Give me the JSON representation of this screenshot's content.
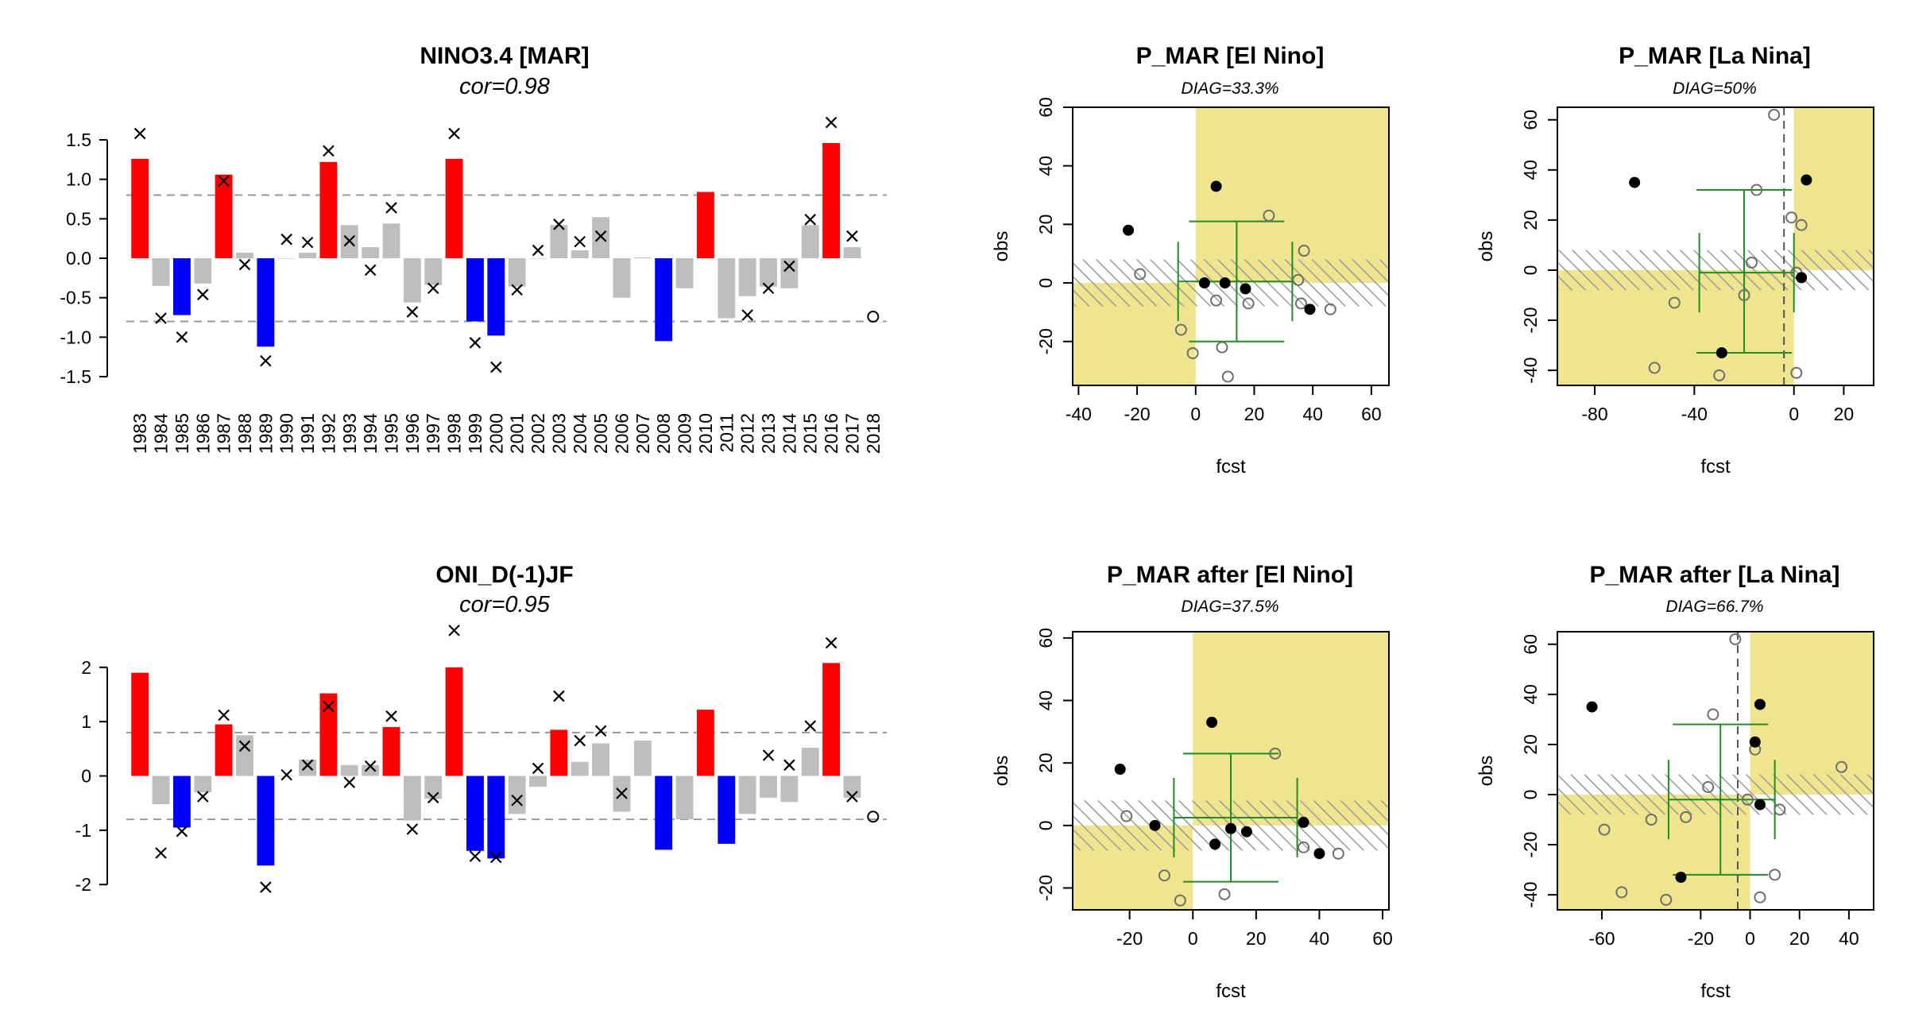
{
  "charts": [
    {
      "type": "bar",
      "title": "NINO3.4 [MAR]",
      "subtitle": "cor=0.98",
      "categories": [
        "1983",
        "1984",
        "1985",
        "1986",
        "1987",
        "1988",
        "1989",
        "1990",
        "1991",
        "1992",
        "1993",
        "1994",
        "1995",
        "1996",
        "1997",
        "1998",
        "1999",
        "2000",
        "2001",
        "2002",
        "2003",
        "2004",
        "2005",
        "2006",
        "2007",
        "2008",
        "2009",
        "2010",
        "2011",
        "2012",
        "2013",
        "2014",
        "2015",
        "2016",
        "2017",
        "2018"
      ],
      "yticks": [
        "-1.5",
        "-1.0",
        "-0.5",
        "0.0",
        "0.5",
        "1.0",
        "1.5"
      ],
      "ylim": [
        -1.5,
        1.5
      ],
      "threshold": 0.8,
      "bar_values": [
        1.26,
        -0.35,
        -0.72,
        -0.32,
        1.06,
        0.07,
        -1.12,
        0,
        0.07,
        1.22,
        0.42,
        0.14,
        0.44,
        -0.56,
        -0.34,
        1.26,
        -0.8,
        -0.98,
        -0.36,
        0,
        0.42,
        0.1,
        0.52,
        -0.5,
        0.01,
        -1.05,
        -0.38,
        0.84,
        -0.76,
        -0.48,
        -0.36,
        -0.38,
        0.42,
        1.46,
        0.14,
        null
      ],
      "obs_values": [
        1.58,
        -0.76,
        -1.0,
        -0.46,
        0.98,
        -0.08,
        -1.3,
        0.24,
        0.2,
        1.36,
        0.22,
        -0.15,
        0.64,
        -0.68,
        -0.38,
        1.58,
        -1.07,
        -1.38,
        -0.4,
        0.1,
        0.43,
        0.21,
        0.28,
        null,
        null,
        null,
        null,
        null,
        null,
        -0.72,
        -0.38,
        -0.1,
        0.49,
        1.72,
        0.28,
        -0.74
      ],
      "bar_colors": [
        "red",
        "gray",
        "blue",
        "gray",
        "red",
        "gray",
        "blue",
        "gray",
        "gray",
        "red",
        "gray",
        "gray",
        "gray",
        "gray",
        "gray",
        "red",
        "blue",
        "blue",
        "gray",
        "gray",
        "gray",
        "gray",
        "gray",
        "gray",
        "gray",
        "blue",
        "gray",
        "red",
        "gray",
        "gray",
        "gray",
        "gray",
        "gray",
        "red",
        "gray",
        "none"
      ],
      "open_circle_index": 35
    },
    {
      "type": "bar",
      "title": "ONI_D(-1)JF",
      "subtitle": "cor=0.95",
      "categories": [
        "1983",
        "1984",
        "1985",
        "1986",
        "1987",
        "1988",
        "1989",
        "1990",
        "1991",
        "1992",
        "1993",
        "1994",
        "1995",
        "1996",
        "1997",
        "1998",
        "1999",
        "2000",
        "2001",
        "2002",
        "2003",
        "2004",
        "2005",
        "2006",
        "2007",
        "2008",
        "2009",
        "2010",
        "2011",
        "2012",
        "2013",
        "2014",
        "2015",
        "2016",
        "2017",
        "2018"
      ],
      "yticks": [
        "-2",
        "-1",
        "0",
        "1",
        "2"
      ],
      "ylim": [
        -2.1,
        2.1
      ],
      "threshold": 0.8,
      "bar_values": [
        1.9,
        -0.52,
        -0.95,
        -0.3,
        0.95,
        0.75,
        -1.65,
        0,
        0.3,
        1.52,
        0.2,
        0.2,
        0.9,
        -0.82,
        -0.42,
        2.0,
        -1.38,
        -1.52,
        -0.7,
        -0.2,
        0.85,
        0.26,
        0.6,
        -0.66,
        0.65,
        -1.36,
        -0.8,
        1.22,
        -1.25,
        -0.7,
        -0.4,
        -0.48,
        0.52,
        2.08,
        -0.4,
        null
      ],
      "obs_values": [
        null,
        -1.42,
        -1.02,
        -0.38,
        1.12,
        0.55,
        -2.05,
        0.02,
        0.2,
        1.28,
        -0.12,
        0.18,
        1.1,
        -0.98,
        -0.4,
        2.68,
        -1.48,
        -1.5,
        -0.45,
        0.14,
        1.47,
        0.65,
        0.83,
        -0.32,
        null,
        null,
        null,
        null,
        null,
        null,
        0.38,
        0.2,
        0.92,
        2.45,
        -0.38,
        -0.75
      ],
      "bar_colors": [
        "red",
        "gray",
        "blue",
        "gray",
        "red",
        "gray",
        "blue",
        "gray",
        "gray",
        "red",
        "gray",
        "gray",
        "red",
        "gray",
        "gray",
        "red",
        "blue",
        "blue",
        "gray",
        "gray",
        "red",
        "gray",
        "gray",
        "gray",
        "gray",
        "blue",
        "gray",
        "red",
        "blue",
        "gray",
        "gray",
        "gray",
        "gray",
        "red",
        "gray",
        "none"
      ],
      "open_circle_index": 35
    },
    {
      "type": "scatter",
      "title": "P_MAR [El Nino]",
      "diag": "DIAG=33.3%",
      "xlabel": "fcst",
      "ylabel": "obs",
      "xlim": [
        -42,
        66
      ],
      "ylim": [
        -35,
        60
      ],
      "xticks": [
        "-40",
        "-20",
        "0",
        "20",
        "40",
        "60"
      ],
      "yticks": [
        "-20",
        "0",
        "20",
        "40",
        "60"
      ],
      "yellow_quadrants": [
        [
          0,
          66,
          0,
          60
        ],
        [
          -42,
          0,
          -35,
          0
        ]
      ],
      "hatch_band": [
        -8,
        8
      ],
      "filled_points": [
        [
          -23,
          18
        ],
        [
          7,
          33
        ],
        [
          3,
          0
        ],
        [
          10,
          0
        ],
        [
          17,
          -2
        ],
        [
          39,
          -9
        ]
      ],
      "open_points": [
        [
          -19,
          3
        ],
        [
          -5,
          -16
        ],
        [
          -1,
          -24
        ],
        [
          7,
          -6
        ],
        [
          9,
          -22
        ],
        [
          11,
          -32
        ],
        [
          18,
          -7
        ],
        [
          25,
          23
        ],
        [
          35,
          1
        ],
        [
          36,
          -7
        ],
        [
          37,
          11
        ],
        [
          46,
          -9
        ]
      ],
      "error_cross": {
        "x": 14,
        "y": 0.5,
        "x_lo": -6,
        "x_hi": 33,
        "y_lo": -20,
        "y_hi": 21
      }
    },
    {
      "type": "scatter",
      "title": "P_MAR [La Nina]",
      "diag": "DIAG=50%",
      "xlabel": "fcst",
      "ylabel": "obs",
      "xlim": [
        -95,
        32
      ],
      "ylim": [
        -46,
        65
      ],
      "xticks": [
        "-80",
        "-40",
        "0",
        "20"
      ],
      "yticks": [
        "-40",
        "-20",
        "0",
        "20",
        "40",
        "60"
      ],
      "yellow_quadrants": [
        [
          0,
          32,
          0,
          65
        ],
        [
          -95,
          0,
          -46,
          0
        ]
      ],
      "hatch_band": [
        -8,
        8
      ],
      "filled_points": [
        [
          -64,
          35
        ],
        [
          -29,
          -33
        ],
        [
          5,
          36
        ],
        [
          3,
          -3
        ]
      ],
      "open_points": [
        [
          -56,
          -39
        ],
        [
          -48,
          -13
        ],
        [
          -30,
          -42
        ],
        [
          -20,
          -10
        ],
        [
          -17,
          3
        ],
        [
          -15,
          32
        ],
        [
          -8,
          62
        ],
        [
          -1,
          21
        ],
        [
          1,
          -1
        ],
        [
          3,
          18
        ],
        [
          1,
          -41
        ]
      ],
      "error_cross": {
        "x": -20,
        "y": -1,
        "x_lo": -38,
        "x_hi": 0,
        "y_lo": -33,
        "y_hi": 32
      },
      "vline": -4
    },
    {
      "type": "scatter",
      "title": "P_MAR after [El Nino]",
      "diag": "DIAG=37.5%",
      "xlabel": "fcst",
      "ylabel": "obs",
      "xlim": [
        -38,
        62
      ],
      "ylim": [
        -27,
        62
      ],
      "xticks": [
        "-20",
        "0",
        "20",
        "40",
        "60"
      ],
      "yticks": [
        "-20",
        "0",
        "20",
        "40",
        "60"
      ],
      "yellow_quadrants": [
        [
          0,
          62,
          0,
          62
        ],
        [
          -38,
          0,
          -27,
          0
        ]
      ],
      "hatch_band": [
        -8,
        8
      ],
      "filled_points": [
        [
          -23,
          18
        ],
        [
          6,
          33
        ],
        [
          -12,
          0
        ],
        [
          7,
          -6
        ],
        [
          12,
          -1
        ],
        [
          17,
          -2
        ],
        [
          35,
          1
        ],
        [
          40,
          -9
        ]
      ],
      "open_points": [
        [
          -21,
          3
        ],
        [
          -9,
          -16
        ],
        [
          -4,
          -24
        ],
        [
          10,
          -22
        ],
        [
          26,
          23
        ],
        [
          35,
          -7
        ],
        [
          46,
          -9
        ]
      ],
      "error_cross": {
        "x": 12,
        "y": 2.5,
        "x_lo": -6,
        "x_hi": 33,
        "y_lo": -18,
        "y_hi": 23
      }
    },
    {
      "type": "scatter",
      "title": "P_MAR after [La Nina]",
      "diag": "DIAG=66.7%",
      "xlabel": "fcst",
      "ylabel": "obs",
      "xlim": [
        -78,
        50
      ],
      "ylim": [
        -46,
        65
      ],
      "xticks": [
        "-60",
        "-20",
        "0",
        "20",
        "40"
      ],
      "yticks": [
        "-40",
        "-20",
        "0",
        "20",
        "40",
        "60"
      ],
      "yellow_quadrants": [
        [
          0,
          50,
          0,
          65
        ],
        [
          -78,
          0,
          -46,
          0
        ]
      ],
      "hatch_band": [
        -8,
        8
      ],
      "filled_points": [
        [
          -64,
          35
        ],
        [
          -28,
          -33
        ],
        [
          4,
          36
        ],
        [
          2,
          21
        ],
        [
          4,
          -4
        ]
      ],
      "open_points": [
        [
          -59,
          -14
        ],
        [
          -52,
          -39
        ],
        [
          -40,
          -10
        ],
        [
          -34,
          -42
        ],
        [
          -26,
          -9
        ],
        [
          -17,
          3
        ],
        [
          -15,
          32
        ],
        [
          -6,
          62
        ],
        [
          -1,
          -2
        ],
        [
          2,
          18
        ],
        [
          12,
          -6
        ],
        [
          4,
          -41
        ],
        [
          10,
          -32
        ],
        [
          37,
          11
        ]
      ],
      "error_cross": {
        "x": -12,
        "y": -2,
        "x_lo": -33,
        "x_hi": 10,
        "y_lo": -32,
        "y_hi": 28
      },
      "vline": -5
    }
  ]
}
